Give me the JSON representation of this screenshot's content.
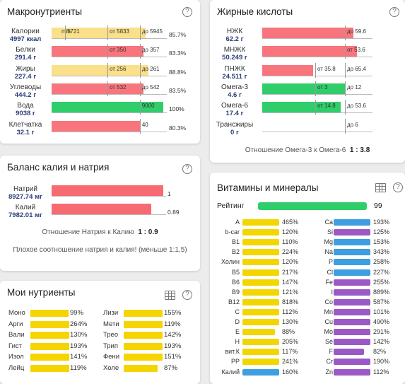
{
  "colors": {
    "red": "#f9757d",
    "yellow": "#fae08a",
    "green": "#2fce6a",
    "vyellow": "#f3d500",
    "blue": "#3d9ee1",
    "purple": "#9b59c6",
    "sodium_red": "#f86a72"
  },
  "macro": {
    "title": "Макронутриенты",
    "rows": [
      {
        "name": "Калории",
        "amount": "4997 ккал",
        "fill": 0.84,
        "color": "yellow",
        "marks": [
          "min",
          "5721",
          "от 5833",
          "до 5945"
        ],
        "pct": "85.7%"
      },
      {
        "name": "Белки",
        "amount": "291.4 г",
        "fill": 0.82,
        "color": "red",
        "marks": [
          "от 350",
          "до 357"
        ],
        "pct": "83.3%"
      },
      {
        "name": "Жиры",
        "amount": "227.4 г",
        "fill": 0.87,
        "color": "yellow",
        "marks": [
          "от 256",
          "до 261"
        ],
        "pct": "88.8%"
      },
      {
        "name": "Углеводы",
        "amount": "444.2 г",
        "fill": 0.82,
        "color": "red",
        "marks": [
          "от 532",
          "до 542"
        ],
        "pct": "83.5%"
      },
      {
        "name": "Вода",
        "amount": "9038 г",
        "fill": 1.0,
        "color": "green",
        "marks": [
          "9000"
        ],
        "pct": "100%"
      },
      {
        "name": "Клетчатка",
        "amount": "32.1 г",
        "fill": 0.79,
        "color": "red",
        "marks": [
          "40"
        ],
        "pct": "80.3%"
      }
    ]
  },
  "fatty": {
    "title": "Жирные кислоты",
    "rows": [
      {
        "name": "НЖК",
        "amount": "62.2 г",
        "fill": 0.86,
        "color": "red",
        "marks": [
          "до 59.6"
        ]
      },
      {
        "name": "МНЖК",
        "amount": "50.249 г",
        "fill": 0.89,
        "color": "red",
        "marks": [
          "от 53.6"
        ]
      },
      {
        "name": "ПНЖК",
        "amount": "24.511 г",
        "fill": 0.48,
        "color": "red",
        "marks": [
          "от 35.8",
          "до 65.4"
        ]
      },
      {
        "name": "Омега-3",
        "amount": "4.6 г",
        "fill": 0.78,
        "color": "green",
        "marks": [
          "от 3",
          "до 12"
        ]
      },
      {
        "name": "Омега-6",
        "amount": "17.4 г",
        "fill": 0.74,
        "color": "green",
        "marks": [
          "от 14.8",
          "до 53.6"
        ]
      },
      {
        "name": "Трансжиры",
        "amount": "0 г",
        "fill": 0,
        "color": "green",
        "marks": [
          "до 6"
        ]
      }
    ],
    "ratio_label": "Отношение Омега-3 к Омега-6",
    "ratio_value": "1 : 3.8"
  },
  "kna": {
    "title": "Баланс калия и натрия",
    "rows": [
      {
        "name": "Натрий",
        "amount": "8927.74 мг",
        "fill": 1.0,
        "value": "1"
      },
      {
        "name": "Калий",
        "amount": "7982.01 мг",
        "fill": 0.89,
        "value": "0.89"
      }
    ],
    "ratio_label": "Отношение Натрия к Калию",
    "ratio_value": "1 : 0.9",
    "warning": "Плохое соотношение натрия и калия! (меньше 1:1,5)"
  },
  "my": {
    "title": "Мои нутриенты",
    "left": [
      {
        "name": "Моно",
        "pct": "99%",
        "fill": 0.99
      },
      {
        "name": "Арги",
        "pct": "264%",
        "fill": 1.0
      },
      {
        "name": "Вали",
        "pct": "130%",
        "fill": 1.0
      },
      {
        "name": "Гист",
        "pct": "193%",
        "fill": 1.0
      },
      {
        "name": "Изол",
        "pct": "141%",
        "fill": 1.0
      },
      {
        "name": "Лейц",
        "pct": "119%",
        "fill": 1.0
      }
    ],
    "right": [
      {
        "name": "Лизи",
        "pct": "155%",
        "fill": 1.0
      },
      {
        "name": "Мети",
        "pct": "119%",
        "fill": 1.0
      },
      {
        "name": "Трео",
        "pct": "142%",
        "fill": 1.0
      },
      {
        "name": "Трип",
        "pct": "193%",
        "fill": 1.0
      },
      {
        "name": "Фени",
        "pct": "151%",
        "fill": 1.0
      },
      {
        "name": "Холе",
        "pct": "87%",
        "fill": 0.87
      }
    ]
  },
  "vit": {
    "title": "Витамины и минералы",
    "rating_label": "Рейтинг",
    "rating_value": "99",
    "rating_fill": 0.99,
    "left": [
      {
        "name": "A",
        "pct": "465%",
        "fill": 1.0,
        "color": "vyellow"
      },
      {
        "name": "b-car",
        "pct": "120%",
        "fill": 1.0,
        "color": "vyellow"
      },
      {
        "name": "B1",
        "pct": "110%",
        "fill": 1.0,
        "color": "vyellow"
      },
      {
        "name": "B2",
        "pct": "224%",
        "fill": 1.0,
        "color": "vyellow"
      },
      {
        "name": "Холин",
        "pct": "120%",
        "fill": 1.0,
        "color": "vyellow"
      },
      {
        "name": "B5",
        "pct": "217%",
        "fill": 1.0,
        "color": "vyellow"
      },
      {
        "name": "B6",
        "pct": "147%",
        "fill": 1.0,
        "color": "vyellow"
      },
      {
        "name": "B9",
        "pct": "121%",
        "fill": 1.0,
        "color": "vyellow"
      },
      {
        "name": "B12",
        "pct": "818%",
        "fill": 1.0,
        "color": "vyellow"
      },
      {
        "name": "C",
        "pct": "112%",
        "fill": 1.0,
        "color": "vyellow"
      },
      {
        "name": "D",
        "pct": "130%",
        "fill": 1.0,
        "color": "vyellow"
      },
      {
        "name": "E",
        "pct": "88%",
        "fill": 0.88,
        "color": "vyellow"
      },
      {
        "name": "H",
        "pct": "205%",
        "fill": 1.0,
        "color": "vyellow"
      },
      {
        "name": "вит.К",
        "pct": "117%",
        "fill": 1.0,
        "color": "vyellow"
      },
      {
        "name": "PP",
        "pct": "241%",
        "fill": 1.0,
        "color": "vyellow"
      },
      {
        "name": "Калий",
        "pct": "160%",
        "fill": 1.0,
        "color": "blue"
      }
    ],
    "right": [
      {
        "name": "Ca",
        "pct": "193%",
        "fill": 1.0,
        "color": "blue"
      },
      {
        "name": "Si",
        "pct": "125%",
        "fill": 1.0,
        "color": "purple"
      },
      {
        "name": "Mg",
        "pct": "153%",
        "fill": 1.0,
        "color": "blue"
      },
      {
        "name": "Na",
        "pct": "343%",
        "fill": 1.0,
        "color": "blue"
      },
      {
        "name": "P",
        "pct": "258%",
        "fill": 1.0,
        "color": "blue"
      },
      {
        "name": "Cl",
        "pct": "227%",
        "fill": 1.0,
        "color": "blue"
      },
      {
        "name": "Fe",
        "pct": "255%",
        "fill": 1.0,
        "color": "purple"
      },
      {
        "name": "I",
        "pct": "889%",
        "fill": 1.0,
        "color": "purple"
      },
      {
        "name": "Co",
        "pct": "587%",
        "fill": 1.0,
        "color": "purple"
      },
      {
        "name": "Mn",
        "pct": "101%",
        "fill": 1.0,
        "color": "purple"
      },
      {
        "name": "Cu",
        "pct": "490%",
        "fill": 1.0,
        "color": "purple"
      },
      {
        "name": "Mo",
        "pct": "291%",
        "fill": 1.0,
        "color": "purple"
      },
      {
        "name": "Se",
        "pct": "142%",
        "fill": 1.0,
        "color": "purple"
      },
      {
        "name": "F",
        "pct": "82%",
        "fill": 0.82,
        "color": "purple"
      },
      {
        "name": "Cr",
        "pct": "190%",
        "fill": 1.0,
        "color": "purple"
      },
      {
        "name": "Zn",
        "pct": "112%",
        "fill": 1.0,
        "color": "purple"
      }
    ]
  }
}
